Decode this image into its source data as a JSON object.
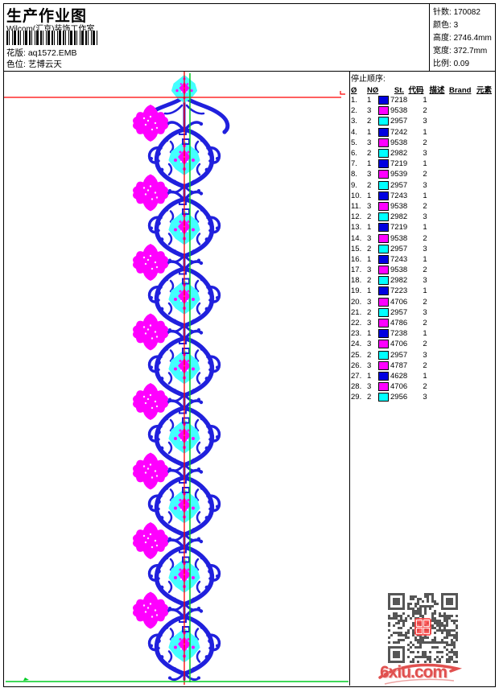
{
  "header": {
    "title": "生产作业图",
    "studio": "Wilcom(汇京)装饰工作室",
    "pattern_label": "花版:",
    "pattern_value": "aq1572.EMB",
    "colorway_label": "色位:",
    "colorway_value": "艺博云天",
    "info": [
      {
        "label": "针数:",
        "value": "170082"
      },
      {
        "label": "颜色:",
        "value": "3"
      },
      {
        "label": "高度:",
        "value": "2746.4mm"
      },
      {
        "label": "宽度:",
        "value": "372.7mm"
      },
      {
        "label": "比例:",
        "value": "0.09"
      }
    ]
  },
  "table": {
    "title": "停止顺序:",
    "columns": [
      "Ø",
      "NØ",
      "St.",
      "代码",
      "描述",
      "Brand",
      "元素"
    ],
    "rows": [
      {
        "n": "1.",
        "needle": "1",
        "st": "7218",
        "code": "1",
        "color": "#0000e0"
      },
      {
        "n": "2.",
        "needle": "3",
        "st": "9538",
        "code": "2",
        "color": "#ff00ff"
      },
      {
        "n": "3.",
        "needle": "2",
        "st": "2957",
        "code": "3",
        "color": "#00ffff"
      },
      {
        "n": "4.",
        "needle": "1",
        "st": "7242",
        "code": "1",
        "color": "#0000e0"
      },
      {
        "n": "5.",
        "needle": "3",
        "st": "9538",
        "code": "2",
        "color": "#ff00ff"
      },
      {
        "n": "6.",
        "needle": "2",
        "st": "2982",
        "code": "3",
        "color": "#00ffff"
      },
      {
        "n": "7.",
        "needle": "1",
        "st": "7219",
        "code": "1",
        "color": "#0000e0"
      },
      {
        "n": "8.",
        "needle": "3",
        "st": "9539",
        "code": "2",
        "color": "#ff00ff"
      },
      {
        "n": "9.",
        "needle": "2",
        "st": "2957",
        "code": "3",
        "color": "#00ffff"
      },
      {
        "n": "10.",
        "needle": "1",
        "st": "7243",
        "code": "1",
        "color": "#0000e0"
      },
      {
        "n": "11.",
        "needle": "3",
        "st": "9538",
        "code": "2",
        "color": "#ff00ff"
      },
      {
        "n": "12.",
        "needle": "2",
        "st": "2982",
        "code": "3",
        "color": "#00ffff"
      },
      {
        "n": "13.",
        "needle": "1",
        "st": "7219",
        "code": "1",
        "color": "#0000e0"
      },
      {
        "n": "14.",
        "needle": "3",
        "st": "9538",
        "code": "2",
        "color": "#ff00ff"
      },
      {
        "n": "15.",
        "needle": "2",
        "st": "2957",
        "code": "3",
        "color": "#00ffff"
      },
      {
        "n": "16.",
        "needle": "1",
        "st": "7243",
        "code": "1",
        "color": "#0000e0"
      },
      {
        "n": "17.",
        "needle": "3",
        "st": "9538",
        "code": "2",
        "color": "#ff00ff"
      },
      {
        "n": "18.",
        "needle": "2",
        "st": "2982",
        "code": "3",
        "color": "#00ffff"
      },
      {
        "n": "19.",
        "needle": "1",
        "st": "7223",
        "code": "1",
        "color": "#0000e0"
      },
      {
        "n": "20.",
        "needle": "3",
        "st": "4706",
        "code": "2",
        "color": "#ff00ff"
      },
      {
        "n": "21.",
        "needle": "2",
        "st": "2957",
        "code": "3",
        "color": "#00ffff"
      },
      {
        "n": "22.",
        "needle": "3",
        "st": "4786",
        "code": "2",
        "color": "#ff00ff"
      },
      {
        "n": "23.",
        "needle": "1",
        "st": "7238",
        "code": "1",
        "color": "#0000e0"
      },
      {
        "n": "24.",
        "needle": "3",
        "st": "4706",
        "code": "2",
        "color": "#ff00ff"
      },
      {
        "n": "25.",
        "needle": "2",
        "st": "2957",
        "code": "3",
        "color": "#00ffff"
      },
      {
        "n": "26.",
        "needle": "3",
        "st": "4787",
        "code": "2",
        "color": "#ff00ff"
      },
      {
        "n": "27.",
        "needle": "1",
        "st": "4628",
        "code": "1",
        "color": "#0000e0"
      },
      {
        "n": "28.",
        "needle": "3",
        "st": "4706",
        "code": "2",
        "color": "#ff00ff"
      },
      {
        "n": "29.",
        "needle": "2",
        "st": "2956",
        "code": "3",
        "color": "#00ffff"
      }
    ]
  },
  "design": {
    "colors": {
      "blue": "#2020dd",
      "magenta": "#ff00ff",
      "cyan": "#44ffff",
      "guide_red": "#ff0000",
      "guide_green": "#00cc22"
    }
  },
  "watermark": {
    "text": "6xiu.com"
  }
}
